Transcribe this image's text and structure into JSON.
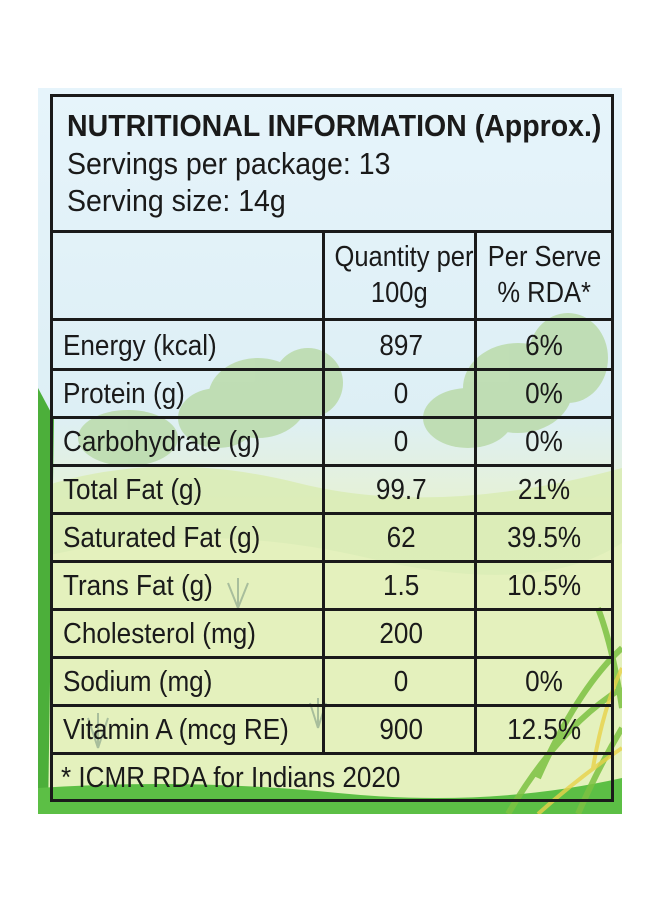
{
  "title": "NUTRITIONAL INFORMATION (Approx.)",
  "servings_per_package": "Servings per package: 13",
  "serving_size": "Serving size: 14g",
  "columns": {
    "quantity_line1": "Quantity per",
    "quantity_line2": "100g",
    "rda_line1": "Per Serve",
    "rda_line2": "% RDA*"
  },
  "rows": [
    {
      "nutrient": "Energy (kcal)",
      "quantity": "897",
      "rda": "6%"
    },
    {
      "nutrient": "Protein (g)",
      "quantity": "0",
      "rda": "0%"
    },
    {
      "nutrient": "Carbohydrate (g)",
      "quantity": "0",
      "rda": "0%"
    },
    {
      "nutrient": "Total Fat (g)",
      "quantity": "99.7",
      "rda": "21%"
    },
    {
      "nutrient": "Saturated Fat (g)",
      "quantity": "62",
      "rda": "39.5%"
    },
    {
      "nutrient": "Trans Fat (g)",
      "quantity": "1.5",
      "rda": "10.5%"
    },
    {
      "nutrient": "Cholesterol (mg)",
      "quantity": "200",
      "rda": ""
    },
    {
      "nutrient": "Sodium (mg)",
      "quantity": "0",
      "rda": "0%"
    },
    {
      "nutrient": "Vitamin A (mcg RE)",
      "quantity": "900",
      "rda": "12.5%"
    }
  ],
  "footnote": "* ICMR RDA for Indians 2020",
  "colors": {
    "border": "#1a1a1a",
    "sky": "#dff0f8",
    "meadow": "#e9f3c0",
    "grass": "#4caf3a",
    "tree": "#b7d9a3"
  }
}
